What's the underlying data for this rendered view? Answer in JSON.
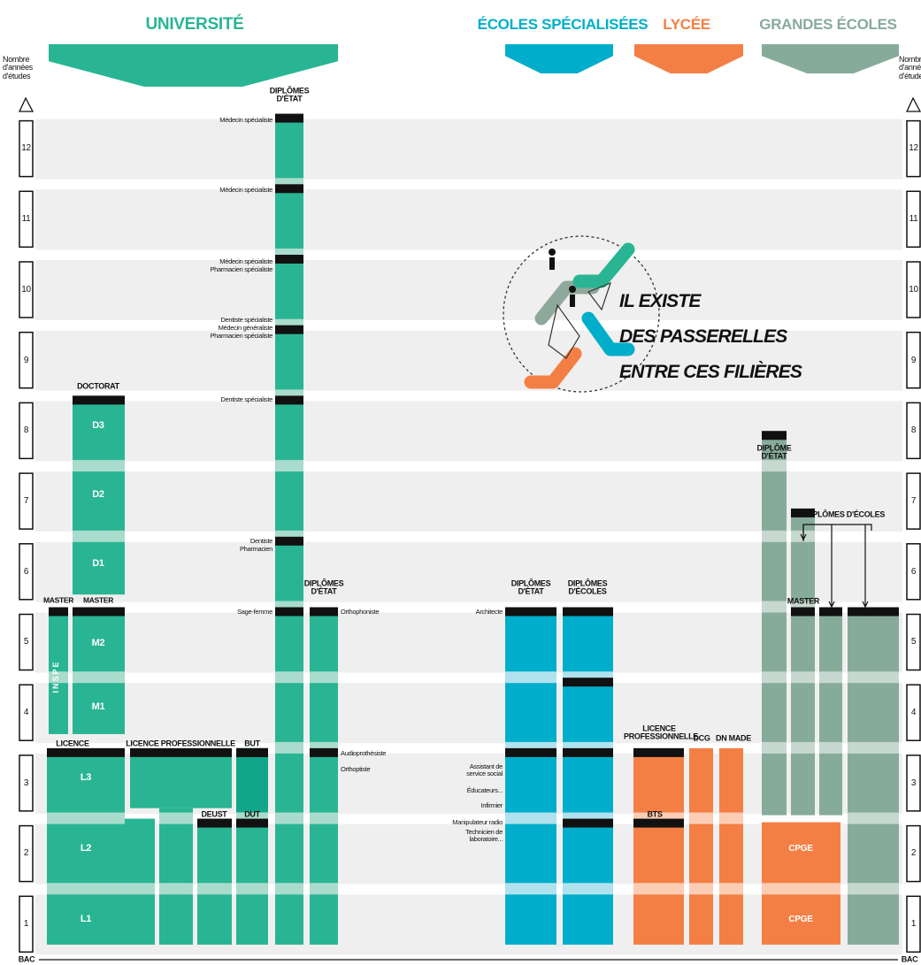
{
  "header": {
    "universite": "UNIVERSITÉ",
    "ecoles_specialisees": "ÉCOLES SPÉCIALISÉES",
    "lycee": "LYCÉE",
    "grandes_ecoles": "GRANDES ÉCOLES"
  },
  "axis": {
    "title": "Nombre d'années d'études",
    "years": [
      1,
      2,
      3,
      4,
      5,
      6,
      7,
      8,
      9,
      10,
      11,
      12
    ],
    "bac": "BAC"
  },
  "universite": {
    "doctorat": "DOCTORAT",
    "master_inspe": "MASTER",
    "master": "MASTER",
    "inspe": "INSPE",
    "licence": "LICENCE",
    "licence_pro": "LICENCE PROFESSIONNELLE",
    "but": "BUT",
    "deust": "DEUST",
    "dut": "DUT",
    "diplomes_etat": "DIPLÔMES D'ÉTAT",
    "diplomes_etat_2": "DIPLÔMES D'ÉTAT",
    "blocks": [
      "L1",
      "L2",
      "L3",
      "M1",
      "M2",
      "D1",
      "D2",
      "D3"
    ],
    "sante": [
      [
        "Médecin spécialiste"
      ],
      [
        "Médecin spécialiste"
      ],
      [
        "Médecin spécialiste",
        "Pharmacien spécialiste"
      ],
      [
        "Dentiste spécialiste",
        "Médecin généraliste",
        "Pharmacien spécialiste"
      ],
      [
        "Dentiste spécialiste"
      ],
      [
        "Dentiste",
        "Pharmacien"
      ],
      [
        "Sage-femme"
      ]
    ],
    "paramedical": [
      "Orthophoniste",
      "Audioprothésiste",
      "Orthoptiste"
    ]
  },
  "ecoles_specialisees": {
    "diplomes_etat": "DIPLÔMES D'ÉTAT",
    "diplomes_ecoles": "DIPLÔMES D'ÉCOLES",
    "metiers": [
      "Architecte",
      "Assistant de service social",
      "Éducateurs...",
      "Infirmier",
      "Manipulateur radio",
      "Technicien de laboratoire..."
    ]
  },
  "lycee": {
    "licence_pro": "LICENCE PROFESSIONNELLE",
    "dcg": "DCG",
    "dn_made": "DN MADE",
    "bts": "BTS"
  },
  "grandes_ecoles": {
    "diplome_etat": "DIPLÔME D'ÉTAT",
    "diplomes_ecoles": "DIPLÔMES D'ÉCOLES",
    "master": "MASTER",
    "cpge": [
      "CPGE",
      "CPGE"
    ]
  },
  "passerelles": [
    "IL EXISTE",
    "DES PASSERELLES",
    "ENTRE CES FILIÈRES"
  ]
}
